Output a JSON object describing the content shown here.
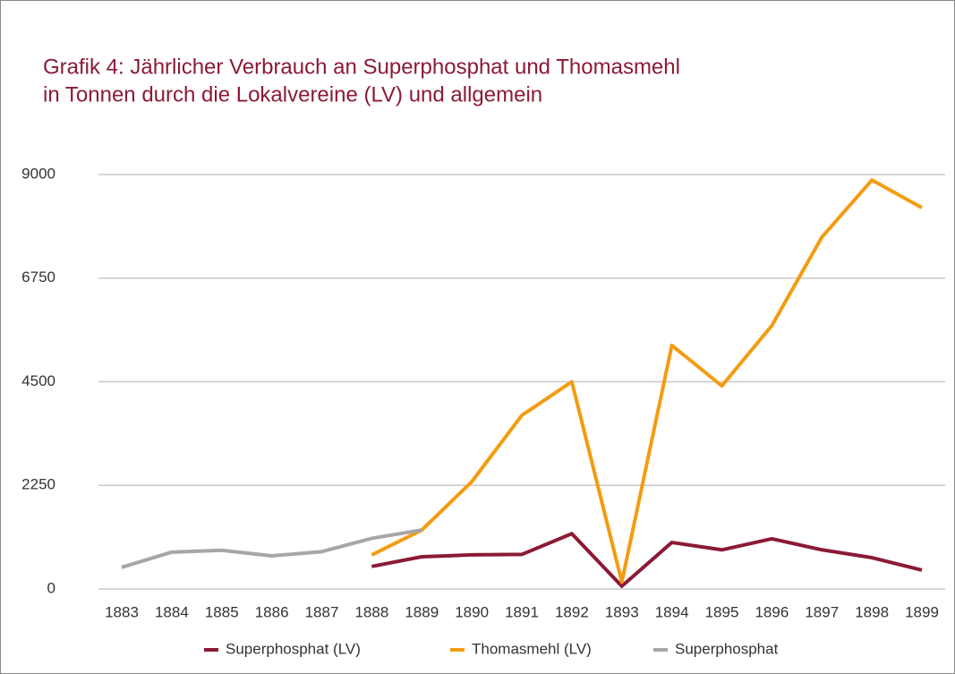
{
  "chart_data": {
    "type": "line",
    "title": [
      "Grafik 4: Jährlicher Verbrauch an Superphosphat und Thomasmehl",
      "in Tonnen durch die Lokalvereine (LV) und allgemein"
    ],
    "x": [
      "1883",
      "1884",
      "1885",
      "1886",
      "1887",
      "1888",
      "1889",
      "1890",
      "1891",
      "1892",
      "1893",
      "1894",
      "1895",
      "1896",
      "1897",
      "1898",
      "1899"
    ],
    "series": [
      {
        "name": "Superphosphat (LV)",
        "color": "#8b1a35",
        "values": [
          null,
          null,
          null,
          null,
          null,
          490,
          700,
          740,
          750,
          1200,
          60,
          1010,
          850,
          1090,
          850,
          680,
          410
        ]
      },
      {
        "name": "Thomasmehl (LV)",
        "color": "#f39c12",
        "values": [
          null,
          null,
          null,
          null,
          null,
          740,
          1280,
          2330,
          3770,
          4500,
          150,
          5290,
          4410,
          5720,
          7640,
          8880,
          8280
        ]
      },
      {
        "name": "Superphosphat",
        "color": "#a6a6a6",
        "values": [
          470,
          800,
          840,
          720,
          810,
          1100,
          1280,
          null,
          null,
          null,
          null,
          null,
          null,
          null,
          null,
          null,
          null
        ]
      }
    ],
    "ylim": [
      0,
      9000
    ],
    "yticks": [
      0,
      2250,
      4500,
      6750,
      9000
    ],
    "grid": true,
    "legend": "bottom"
  }
}
